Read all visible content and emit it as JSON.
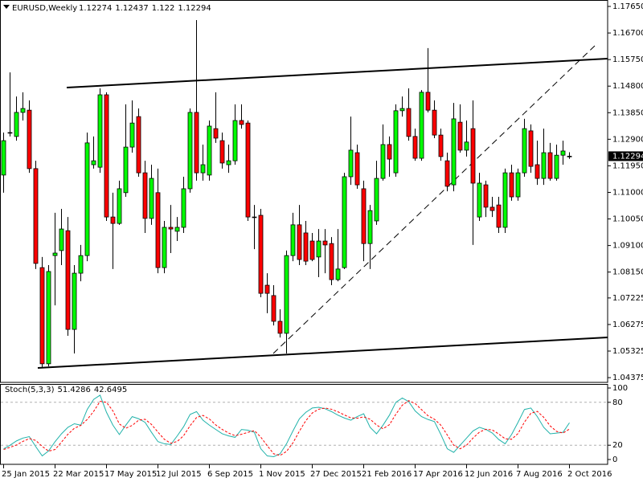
{
  "chart_data": [
    {
      "type": "candlestick",
      "title": "EURUSD,Weekly",
      "categories": [
        "25 Jan 2015",
        null,
        null,
        null,
        null,
        null,
        null,
        null,
        "22 Mar 2015",
        null,
        null,
        null,
        null,
        null,
        null,
        null,
        "17 May 2015",
        null,
        null,
        null,
        null,
        null,
        null,
        null,
        "12 Jul 2015",
        null,
        null,
        null,
        null,
        null,
        null,
        null,
        "6 Sep 2015",
        null,
        null,
        null,
        null,
        null,
        null,
        null,
        "1 Nov 2015",
        null,
        null,
        null,
        null,
        null,
        null,
        null,
        "27 Dec 2015",
        null,
        null,
        null,
        null,
        null,
        null,
        null,
        "21 Feb 2016",
        null,
        null,
        null,
        null,
        null,
        null,
        null,
        "17 Apr 2016",
        null,
        null,
        null,
        null,
        null,
        null,
        null,
        "12 Jun 2016",
        null,
        null,
        null,
        null,
        null,
        null,
        null,
        "7 Aug 2016",
        null,
        null,
        null,
        null,
        null,
        null,
        null,
        "2 Oct 2016"
      ],
      "open": [
        1.1162,
        1.1314,
        1.13,
        1.1386,
        1.1394,
        1.1185,
        1.0831,
        1.0487,
        1.0874,
        1.0892,
        1.0963,
        1.061,
        1.0811,
        1.0874,
        1.1199,
        1.119,
        1.1449,
        1.1012,
        1.0989,
        1.1099,
        1.1262,
        1.1371,
        1.117,
        1.1007,
        1.1099,
        1.0831,
        1.0975,
        1.0961,
        1.0975,
        1.1113,
        1.1386,
        1.117,
        1.1162,
        1.1328,
        1.1285,
        1.1199,
        1.1213,
        1.1357,
        1.1348,
        1.1012,
        1.1018,
        1.0768,
        1.0731,
        1.0639,
        1.0596,
        1.0874,
        1.0984,
        1.0955,
        1.0926,
        1.0869,
        1.0926,
        1.0917,
        1.0788,
        1.0831,
        1.1156,
        1.1242,
        1.1113,
        1.0917,
        1.0998,
        1.115,
        1.1271,
        1.117,
        1.1392,
        1.14,
        1.13,
        1.1222,
        1.1458,
        1.1394,
        1.1305,
        1.1213,
        1.1127,
        1.1351,
        1.1251,
        1.1328,
        1.1012,
        1.1127,
        1.1047,
        1.1055,
        1.0975,
        1.117,
        1.1084,
        1.117,
        1.132,
        1.1199,
        1.115,
        1.1242,
        1.115,
        1.1233,
        1.12274
      ],
      "high": [
        1.1314,
        1.1529,
        1.1443,
        1.1458,
        1.1429,
        1.1213,
        1.0869,
        1.084,
        1.1027,
        1.1041,
        1.1012,
        1.084,
        1.0912,
        1.1314,
        1.13,
        1.1472,
        1.1458,
        1.1099,
        1.1142,
        1.1415,
        1.1429,
        1.14,
        1.1213,
        1.1199,
        1.1185,
        1.0998,
        1.1055,
        1.1012,
        1.1156,
        1.14,
        1.1716,
        1.1271,
        1.1357,
        1.1458,
        1.1314,
        1.1271,
        1.1415,
        1.1415,
        1.1357,
        1.1055,
        1.1041,
        1.0811,
        1.0768,
        1.0682,
        1.0892,
        1.1027,
        1.1055,
        1.0998,
        1.0955,
        1.0969,
        1.0969,
        1.094,
        1.0969,
        1.117,
        1.1371,
        1.1271,
        1.1142,
        1.1055,
        1.1213,
        1.1343,
        1.13,
        1.1415,
        1.1443,
        1.1472,
        1.1328,
        1.1466,
        1.1616,
        1.1429,
        1.1328,
        1.1242,
        1.142,
        1.1415,
        1.1357,
        1.1429,
        1.117,
        1.1142,
        1.1084,
        1.1084,
        1.1185,
        1.1199,
        1.1185,
        1.1363,
        1.1343,
        1.1285,
        1.1328,
        1.1277,
        1.1271,
        1.1285,
        1.12437
      ],
      "low": [
        1.1099,
        1.13,
        1.1285,
        1.1357,
        1.117,
        1.0826,
        1.0472,
        1.0478,
        1.0696,
        1.084,
        1.0587,
        1.0524,
        1.0782,
        1.0854,
        1.1185,
        1.117,
        1.0998,
        1.0826,
        1.0984,
        1.1084,
        1.1242,
        1.1156,
        1.0955,
        1.0984,
        1.0811,
        1.0811,
        1.0883,
        1.0926,
        1.0955,
        1.1099,
        1.1142,
        1.1142,
        1.1142,
        1.1277,
        1.1185,
        1.117,
        1.1199,
        1.1328,
        1.0998,
        1.0897,
        1.0725,
        1.0668,
        1.0624,
        1.0581,
        1.0524,
        1.0854,
        1.084,
        1.084,
        1.0854,
        1.0797,
        1.0811,
        1.0768,
        1.0782,
        1.0826,
        1.1127,
        1.1113,
        1.0854,
        1.0826,
        1.0984,
        1.1142,
        1.1156,
        1.1156,
        1.1371,
        1.1285,
        1.1213,
        1.1213,
        1.1386,
        1.1294,
        1.1213,
        1.1104,
        1.1104,
        1.1242,
        1.1228,
        1.0912,
        1.0998,
        1.1012,
        1.1012,
        1.0955,
        1.0955,
        1.107,
        1.107,
        1.1156,
        1.117,
        1.1127,
        1.1127,
        1.1142,
        1.1142,
        1.1199,
        1.122
      ],
      "close": [
        1.1285,
        1.1314,
        1.1386,
        1.14,
        1.1185,
        1.0846,
        1.0487,
        1.0817,
        1.0883,
        1.0969,
        1.061,
        1.0811,
        1.0874,
        1.1277,
        1.1213,
        1.1449,
        1.1012,
        1.0989,
        1.1113,
        1.1262,
        1.1348,
        1.117,
        1.1007,
        1.115,
        1.0831,
        1.0975,
        1.0969,
        1.0975,
        1.1113,
        1.1386,
        1.117,
        1.1199,
        1.1337,
        1.1294,
        1.1205,
        1.1213,
        1.1357,
        1.1343,
        1.1012,
        1.1012,
        1.0739,
        1.0739,
        1.0639,
        1.0596,
        1.0874,
        1.0984,
        1.086,
        1.0854,
        1.086,
        1.0926,
        1.0912,
        1.0788,
        1.0826,
        1.1156,
        1.1251,
        1.1127,
        1.0917,
        1.1035,
        1.115,
        1.1271,
        1.1219,
        1.1392,
        1.14,
        1.13,
        1.1222,
        1.1458,
        1.1394,
        1.1305,
        1.1228,
        1.1122,
        1.1363,
        1.1251,
        1.128,
        1.1133,
        1.1133,
        1.1047,
        1.1035,
        1.0975,
        1.117,
        1.1084,
        1.117,
        1.1328,
        1.1193,
        1.115,
        1.1242,
        1.115,
        1.1233,
        1.1248,
        1.12294
      ],
      "up_color": "#00ff00",
      "down_color": "#ff0000",
      "ylim": [
        1.04205,
        1.1788
      ],
      "yticks": [
        {
          "value": 1.1765,
          "label": "1.17650"
        },
        {
          "value": 1.167,
          "label": "1.16700"
        },
        {
          "value": 1.1575,
          "label": "1.15750"
        },
        {
          "value": 1.148,
          "label": "1.14800"
        },
        {
          "value": 1.1385,
          "label": "1.13850"
        },
        {
          "value": 1.129,
          "label": "1.12900"
        },
        {
          "value": 1.1195,
          "label": "1.11950"
        },
        {
          "value": 1.11,
          "label": "1.11000"
        },
        {
          "value": 1.1005,
          "label": "1.10050"
        },
        {
          "value": 1.091,
          "label": "1.09100"
        },
        {
          "value": 1.0815,
          "label": "1.08150"
        },
        1.07225,
        1.06275,
        1.05325,
        1.04375
      ]
    },
    {
      "type": "line",
      "title": "Stoch(5,3,3)",
      "series": [
        {
          "color": "#20b2aa",
          "dash": false,
          "values": [
            15,
            20,
            26,
            30,
            32,
            18,
            5,
            12,
            25,
            36,
            45,
            50,
            48,
            70,
            84,
            90,
            66,
            48,
            35,
            48,
            60,
            57,
            52,
            38,
            25,
            22,
            21,
            33,
            46,
            63,
            67,
            55,
            48,
            42,
            36,
            33,
            31,
            42,
            41,
            38,
            15,
            5,
            4,
            8,
            22,
            40,
            57,
            66,
            72,
            73,
            71,
            67,
            62,
            58,
            55,
            60,
            64,
            45,
            36,
            48,
            62,
            80,
            86,
            81,
            68,
            60,
            56,
            53,
            35,
            15,
            10,
            20,
            30,
            40,
            45,
            42,
            37,
            28,
            22,
            35,
            52,
            70,
            72,
            60,
            45,
            36,
            37,
            38,
            51.4286
          ]
        },
        {
          "color": "#ff0000",
          "dash": true,
          "values": [
            14,
            17,
            20.3,
            25.3,
            29.3,
            26.7,
            18.3,
            11.7,
            14,
            24.3,
            35.3,
            43.7,
            47.7,
            56,
            67.3,
            81.3,
            80,
            68,
            49.7,
            43.7,
            47.7,
            55,
            56.3,
            49,
            38.3,
            28.3,
            22.7,
            25.3,
            33.3,
            47.3,
            58.7,
            61.7,
            56.7,
            48.3,
            42,
            37,
            33.3,
            35.3,
            38,
            40.3,
            31.3,
            19.3,
            8,
            5.7,
            11.3,
            23.3,
            39.7,
            54.3,
            65,
            70.3,
            72,
            70.3,
            66.7,
            62.3,
            58.3,
            57.7,
            59.7,
            56.3,
            48.3,
            43,
            48.7,
            63.3,
            76,
            82.3,
            78.3,
            69.7,
            61.3,
            56.3,
            48,
            34.3,
            20,
            15,
            20,
            30,
            38.3,
            42.3,
            41.3,
            35.7,
            29,
            28.3,
            36.3,
            52.3,
            64.7,
            67.3,
            59,
            47,
            39.3,
            37,
            42.6495
          ]
        }
      ],
      "ylim": [
        0,
        100
      ],
      "yticks": [
        0,
        20,
        80,
        100
      ]
    }
  ]
}
